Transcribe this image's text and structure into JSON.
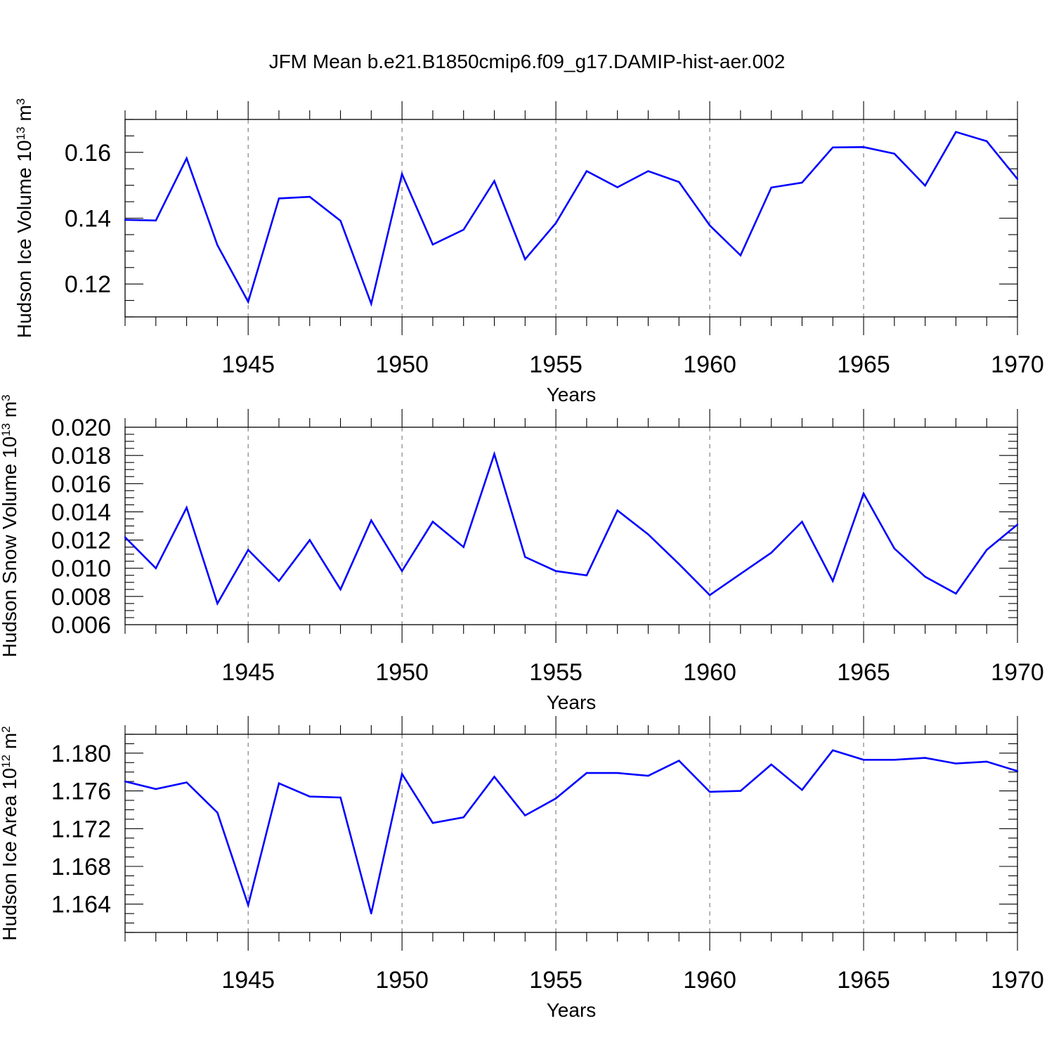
{
  "figure_title": "JFM Mean b.e21.B1850cmip6.f09_g17.DAMIP-hist-aer.002",
  "colors": {
    "series": "#0000ff",
    "axis": "#000000",
    "grid": "#777777"
  },
  "chart_data": [
    {
      "type": "line",
      "ylabel": "Hudson Ice Volume 10",
      "ylabel_exp": "13",
      "ylabel_unit": " m",
      "ylabel_unit_exp": "3",
      "xlabel": "Years",
      "xlim": [
        1941,
        1970
      ],
      "ylim": [
        0.11,
        0.17
      ],
      "xticks": [
        1945,
        1950,
        1955,
        1960,
        1965,
        1970
      ],
      "xtick_labels": [
        "1945",
        "1950",
        "1955",
        "1960",
        "1965",
        "1970"
      ],
      "yticks": [
        0.12,
        0.14,
        0.16
      ],
      "ytick_labels": [
        "0.12",
        "0.14",
        "0.16"
      ],
      "y_minor_step": 0.005,
      "grid_x": [
        1945,
        1950,
        1955,
        1960,
        1965
      ],
      "x": [
        1941,
        1942,
        1943,
        1944,
        1945,
        1946,
        1947,
        1948,
        1949,
        1950,
        1951,
        1952,
        1953,
        1954,
        1955,
        1956,
        1957,
        1958,
        1959,
        1960,
        1961,
        1962,
        1963,
        1964,
        1965,
        1966,
        1967,
        1968,
        1969,
        1970
      ],
      "values": [
        0.1395,
        0.1393,
        0.1582,
        0.1318,
        0.1146,
        0.146,
        0.1465,
        0.1392,
        0.114,
        0.1534,
        0.132,
        0.1365,
        0.1513,
        0.1275,
        0.1385,
        0.1543,
        0.1494,
        0.1543,
        0.151,
        0.1378,
        0.1287,
        0.1493,
        0.1508,
        0.1615,
        0.1616,
        0.1596,
        0.1499,
        0.1662,
        0.1634,
        0.1519
      ]
    },
    {
      "type": "line",
      "ylabel": "Hudson Snow Volume 10",
      "ylabel_exp": "13",
      "ylabel_unit": " m",
      "ylabel_unit_exp": "3",
      "xlabel": "Years",
      "xlim": [
        1941,
        1970
      ],
      "ylim": [
        0.006,
        0.02
      ],
      "xticks": [
        1945,
        1950,
        1955,
        1960,
        1965,
        1970
      ],
      "xtick_labels": [
        "1945",
        "1950",
        "1955",
        "1960",
        "1965",
        "1970"
      ],
      "yticks": [
        0.006,
        0.008,
        0.01,
        0.012,
        0.014,
        0.016,
        0.018,
        0.02
      ],
      "ytick_labels": [
        "0.006",
        "0.008",
        "0.010",
        "0.012",
        "0.014",
        "0.016",
        "0.018",
        "0.020"
      ],
      "y_minor_step": 0.0005,
      "grid_x": [
        1945,
        1950,
        1955,
        1960,
        1965
      ],
      "x": [
        1941,
        1942,
        1943,
        1944,
        1945,
        1946,
        1947,
        1948,
        1949,
        1950,
        1951,
        1952,
        1953,
        1954,
        1955,
        1956,
        1957,
        1958,
        1959,
        1960,
        1961,
        1962,
        1963,
        1964,
        1965,
        1966,
        1967,
        1968,
        1969,
        1970
      ],
      "values": [
        0.0122,
        0.01,
        0.0143,
        0.0075,
        0.0113,
        0.0091,
        0.012,
        0.0085,
        0.0134,
        0.0098,
        0.0133,
        0.0115,
        0.0181,
        0.0108,
        0.0098,
        0.0095,
        0.0141,
        0.0124,
        0.0103,
        0.0081,
        0.0096,
        0.0111,
        0.0133,
        0.0091,
        0.0153,
        0.0114,
        0.0094,
        0.0082,
        0.0113,
        0.0131
      ]
    },
    {
      "type": "line",
      "ylabel": "Hudson Ice Area 10",
      "ylabel_exp": "12",
      "ylabel_unit": " m",
      "ylabel_unit_exp": "2",
      "xlabel": "Years",
      "xlim": [
        1941,
        1970
      ],
      "ylim": [
        1.161,
        1.182
      ],
      "xticks": [
        1945,
        1950,
        1955,
        1960,
        1965,
        1970
      ],
      "xtick_labels": [
        "1945",
        "1950",
        "1955",
        "1960",
        "1965",
        "1970"
      ],
      "yticks": [
        1.164,
        1.168,
        1.172,
        1.176,
        1.18
      ],
      "ytick_labels": [
        "1.164",
        "1.168",
        "1.172",
        "1.176",
        "1.180"
      ],
      "y_minor_step": 0.001,
      "grid_x": [
        1945,
        1950,
        1955,
        1960,
        1965
      ],
      "x": [
        1941,
        1942,
        1943,
        1944,
        1945,
        1946,
        1947,
        1948,
        1949,
        1950,
        1951,
        1952,
        1953,
        1954,
        1955,
        1956,
        1957,
        1958,
        1959,
        1960,
        1961,
        1962,
        1963,
        1964,
        1965,
        1966,
        1967,
        1968,
        1969,
        1970
      ],
      "values": [
        1.177,
        1.1762,
        1.1769,
        1.1737,
        1.1639,
        1.1768,
        1.1754,
        1.1753,
        1.163,
        1.1778,
        1.1726,
        1.1732,
        1.1775,
        1.1734,
        1.1752,
        1.1779,
        1.1779,
        1.1776,
        1.1792,
        1.1759,
        1.176,
        1.1788,
        1.1761,
        1.1803,
        1.1793,
        1.1793,
        1.1795,
        1.1789,
        1.1791,
        1.1781
      ]
    }
  ]
}
